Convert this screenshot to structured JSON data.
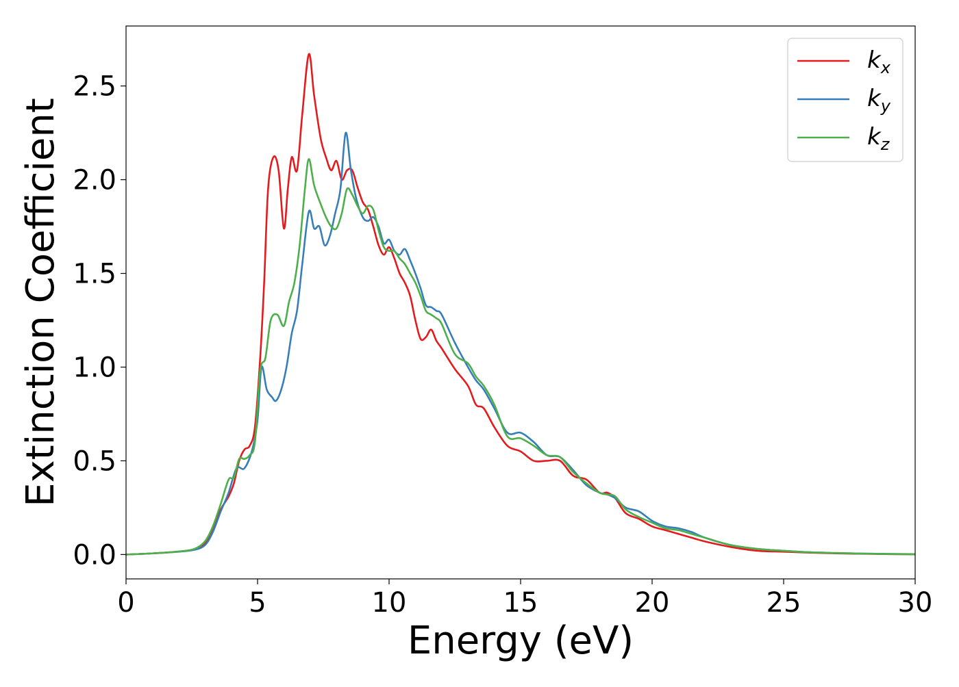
{
  "chart_data": {
    "type": "line",
    "title": "",
    "xlabel": "Energy (eV)",
    "ylabel": "Extinction Coefficient",
    "xlim": [
      0,
      30
    ],
    "ylim": [
      -0.13,
      2.82
    ],
    "xticks": [
      0,
      5,
      10,
      15,
      20,
      25,
      30
    ],
    "xtick_labels": [
      "0",
      "5",
      "10",
      "15",
      "20",
      "25",
      "30"
    ],
    "yticks": [
      0.0,
      0.5,
      1.0,
      1.5,
      2.0,
      2.5
    ],
    "ytick_labels": [
      "0.0",
      "0.5",
      "1.0",
      "1.5",
      "2.0",
      "2.5"
    ],
    "grid": false,
    "legend_position": "top-right",
    "series": [
      {
        "name": "k_x",
        "base": "k",
        "sub": "x",
        "color": "#e41a1c",
        "x": [
          0,
          1,
          2,
          2.6,
          3.0,
          3.3,
          3.6,
          3.9,
          4.1,
          4.3,
          4.5,
          4.7,
          4.9,
          5.1,
          5.25,
          5.4,
          5.6,
          5.8,
          6.0,
          6.15,
          6.3,
          6.5,
          6.7,
          6.95,
          7.15,
          7.4,
          7.6,
          7.8,
          8.0,
          8.2,
          8.4,
          8.6,
          8.8,
          9.0,
          9.2,
          9.4,
          9.6,
          9.8,
          10.0,
          10.2,
          10.4,
          10.6,
          10.8,
          11.0,
          11.2,
          11.4,
          11.6,
          11.8,
          12.0,
          12.5,
          13.0,
          13.3,
          13.6,
          14.0,
          14.5,
          15.0,
          15.5,
          16.0,
          16.5,
          17.0,
          17.5,
          18.0,
          18.3,
          18.6,
          19.0,
          19.5,
          20.0,
          20.5,
          21.0,
          21.5,
          22.0,
          23.0,
          24.0,
          25.0,
          26.0,
          27.0,
          28.0,
          29.0,
          30.0
        ],
        "values": [
          0.0,
          0.006,
          0.016,
          0.028,
          0.06,
          0.13,
          0.24,
          0.31,
          0.38,
          0.5,
          0.56,
          0.58,
          0.68,
          1.05,
          1.45,
          1.95,
          2.12,
          2.05,
          1.74,
          1.95,
          2.12,
          2.05,
          2.35,
          2.67,
          2.45,
          2.22,
          2.12,
          2.05,
          2.1,
          2.0,
          2.05,
          2.05,
          1.96,
          1.88,
          1.84,
          1.75,
          1.65,
          1.6,
          1.64,
          1.58,
          1.5,
          1.45,
          1.38,
          1.25,
          1.15,
          1.16,
          1.2,
          1.14,
          1.1,
          0.99,
          0.9,
          0.8,
          0.78,
          0.68,
          0.58,
          0.55,
          0.5,
          0.5,
          0.5,
          0.42,
          0.4,
          0.33,
          0.33,
          0.3,
          0.22,
          0.19,
          0.15,
          0.13,
          0.11,
          0.09,
          0.07,
          0.04,
          0.02,
          0.015,
          0.01,
          0.006,
          0.004,
          0.002,
          0.001
        ]
      },
      {
        "name": "k_y",
        "base": "k",
        "sub": "y",
        "color": "#377eb8",
        "x": [
          0,
          1,
          2,
          2.6,
          3.0,
          3.3,
          3.6,
          3.9,
          4.2,
          4.5,
          4.8,
          5.0,
          5.15,
          5.35,
          5.55,
          5.7,
          5.9,
          6.1,
          6.3,
          6.5,
          6.7,
          6.95,
          7.15,
          7.35,
          7.55,
          7.75,
          7.95,
          8.15,
          8.35,
          8.55,
          8.75,
          9.0,
          9.2,
          9.4,
          9.6,
          9.8,
          10.0,
          10.2,
          10.4,
          10.6,
          10.8,
          11.0,
          11.2,
          11.4,
          11.6,
          11.8,
          12.0,
          12.5,
          13.0,
          13.3,
          13.6,
          14.0,
          14.5,
          15.0,
          15.5,
          16.0,
          16.5,
          17.0,
          17.5,
          18.0,
          18.3,
          18.6,
          19.0,
          19.5,
          20.0,
          20.5,
          21.0,
          21.5,
          22.0,
          23.0,
          24.0,
          25.0,
          26.0,
          27.0,
          28.0,
          29.0,
          30.0
        ],
        "values": [
          0.0,
          0.006,
          0.015,
          0.025,
          0.05,
          0.12,
          0.23,
          0.33,
          0.46,
          0.46,
          0.56,
          0.72,
          1.0,
          0.88,
          0.84,
          0.82,
          0.88,
          1.0,
          1.18,
          1.3,
          1.55,
          1.83,
          1.74,
          1.75,
          1.65,
          1.7,
          1.82,
          1.95,
          2.25,
          2.05,
          1.9,
          1.8,
          1.78,
          1.8,
          1.75,
          1.66,
          1.68,
          1.62,
          1.6,
          1.63,
          1.57,
          1.5,
          1.42,
          1.33,
          1.32,
          1.3,
          1.28,
          1.13,
          1.0,
          0.93,
          0.88,
          0.78,
          0.65,
          0.65,
          0.6,
          0.53,
          0.52,
          0.45,
          0.37,
          0.33,
          0.32,
          0.3,
          0.25,
          0.23,
          0.18,
          0.15,
          0.14,
          0.12,
          0.09,
          0.05,
          0.03,
          0.02,
          0.012,
          0.008,
          0.005,
          0.003,
          0.002
        ]
      },
      {
        "name": "k_z",
        "base": "k",
        "sub": "z",
        "color": "#4daf4a",
        "x": [
          0,
          1,
          2,
          2.6,
          3.0,
          3.3,
          3.6,
          3.9,
          4.1,
          4.3,
          4.5,
          4.7,
          4.9,
          5.1,
          5.3,
          5.5,
          5.75,
          6.0,
          6.2,
          6.4,
          6.6,
          6.8,
          6.95,
          7.15,
          7.4,
          7.6,
          7.8,
          8.0,
          8.2,
          8.4,
          8.6,
          8.8,
          9.0,
          9.2,
          9.4,
          9.6,
          9.8,
          10.0,
          10.2,
          10.4,
          10.6,
          10.8,
          11.0,
          11.2,
          11.4,
          11.6,
          11.8,
          12.0,
          12.5,
          13.0,
          13.3,
          13.6,
          14.0,
          14.5,
          15.0,
          15.5,
          16.0,
          16.5,
          17.0,
          17.5,
          18.0,
          18.3,
          18.6,
          19.0,
          19.5,
          20.0,
          20.5,
          21.0,
          21.5,
          22.0,
          23.0,
          24.0,
          25.0,
          26.0,
          27.0,
          28.0,
          29.0,
          30.0
        ],
        "values": [
          0.0,
          0.006,
          0.016,
          0.03,
          0.07,
          0.15,
          0.27,
          0.4,
          0.41,
          0.51,
          0.51,
          0.53,
          0.6,
          0.98,
          1.05,
          1.25,
          1.28,
          1.22,
          1.35,
          1.45,
          1.65,
          1.95,
          2.11,
          1.97,
          1.87,
          1.8,
          1.75,
          1.74,
          1.82,
          1.95,
          1.92,
          1.86,
          1.82,
          1.86,
          1.84,
          1.73,
          1.64,
          1.62,
          1.62,
          1.58,
          1.55,
          1.5,
          1.45,
          1.38,
          1.3,
          1.28,
          1.26,
          1.23,
          1.07,
          1.02,
          0.95,
          0.9,
          0.8,
          0.63,
          0.62,
          0.58,
          0.53,
          0.52,
          0.44,
          0.38,
          0.33,
          0.32,
          0.31,
          0.24,
          0.2,
          0.17,
          0.14,
          0.13,
          0.11,
          0.09,
          0.05,
          0.03,
          0.02,
          0.012,
          0.008,
          0.005,
          0.003,
          0.002
        ]
      }
    ]
  }
}
